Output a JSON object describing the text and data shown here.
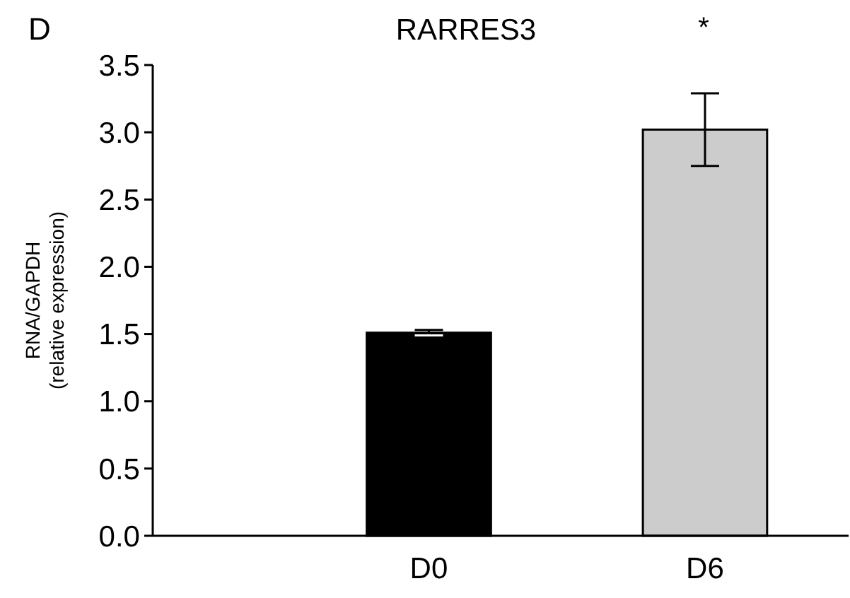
{
  "chart_data": {
    "type": "bar",
    "title": "RARRES3",
    "ylabel": "RNA/GAPDH\n(relative expression)",
    "categories": [
      "D0",
      "D6"
    ],
    "values": [
      1.51,
      3.02
    ],
    "colors": [
      "#000000",
      "#cccccc"
    ],
    "errors": [
      0.02,
      0.27
    ],
    "ylim": [
      0,
      3.5
    ],
    "yticks": [
      {
        "value": 0,
        "label": "0.0"
      },
      {
        "value": 0.5,
        "label": "0.5"
      },
      {
        "value": 1,
        "label": "1.0"
      },
      {
        "value": 1.5,
        "label": "1.5"
      },
      {
        "value": 2,
        "label": "2.0"
      },
      {
        "value": 2.5,
        "label": "2.5"
      },
      {
        "value": 3,
        "label": "3.0"
      },
      {
        "value": 3.5,
        "label": "3.5"
      }
    ],
    "annotations": [
      "D",
      "*"
    ]
  }
}
